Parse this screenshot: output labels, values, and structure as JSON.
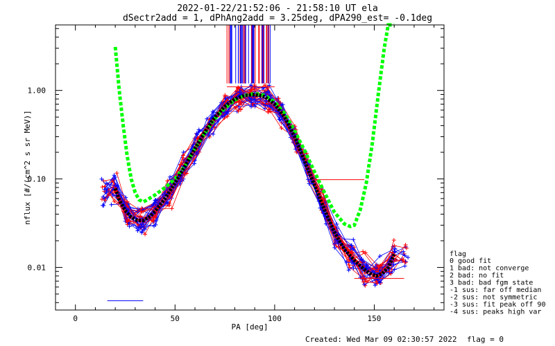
{
  "chart_data": {
    "type": "line",
    "title": "2022-01-22/21:52:06 - 21:58:10 UT ela",
    "subtitle": "dSectr2add = 1, dPhAng2add = 3.25deg, dPA290_est=  -0.1deg",
    "xlabel": "PA [deg]",
    "ylabel": "nflux [#/(cm^2 s sr MeV)]",
    "xlim": [
      -10,
      185
    ],
    "ylim": [
      0.0033,
      5.5
    ],
    "y_scale": "log",
    "x_ticks": [
      0,
      50,
      100,
      150
    ],
    "x_tick_labels": [
      "0",
      "50",
      "100",
      "150"
    ],
    "y_ticks": [
      0.01,
      0.1,
      1.0
    ],
    "y_tick_labels": [
      "0.01",
      "0.10",
      "1.00"
    ],
    "grid": false,
    "series": [
      {
        "name": "",
        "color": "#00ff00",
        "style": "thick-dashed",
        "x": [
          20,
          22,
          24,
          26,
          28,
          30,
          32,
          34,
          36,
          40,
          45,
          50,
          55,
          60,
          65,
          70,
          75,
          80,
          85,
          90,
          95,
          100,
          105,
          110,
          115,
          120,
          125,
          130,
          135,
          138,
          140,
          143,
          146,
          149,
          152,
          155,
          157,
          160
        ],
        "y": [
          3.1,
          1.0,
          0.4,
          0.18,
          0.1,
          0.07,
          0.058,
          0.055,
          0.058,
          0.066,
          0.08,
          0.1,
          0.14,
          0.22,
          0.33,
          0.48,
          0.63,
          0.78,
          0.88,
          0.92,
          0.88,
          0.74,
          0.55,
          0.35,
          0.21,
          0.12,
          0.07,
          0.042,
          0.031,
          0.029,
          0.03,
          0.045,
          0.09,
          0.25,
          0.9,
          3.0,
          5.5,
          5.5
        ]
      },
      {
        "name": "",
        "color": "#000000",
        "style": "thick-dotted",
        "x": [
          20,
          22,
          25,
          28,
          31,
          34,
          37,
          40,
          45,
          50,
          55,
          60,
          65,
          70,
          75,
          80,
          85,
          90,
          95,
          100,
          105,
          110,
          115,
          120,
          125,
          130,
          135,
          140,
          145,
          148,
          151,
          154,
          157,
          160
        ],
        "y": [
          0.078,
          0.058,
          0.044,
          0.037,
          0.034,
          0.034,
          0.037,
          0.043,
          0.06,
          0.09,
          0.14,
          0.22,
          0.34,
          0.5,
          0.66,
          0.8,
          0.88,
          0.9,
          0.85,
          0.7,
          0.5,
          0.3,
          0.16,
          0.085,
          0.045,
          0.025,
          0.016,
          0.012,
          0.0095,
          0.0085,
          0.008,
          0.0085,
          0.01,
          0.014
        ]
      }
    ],
    "legend": {
      "title": "flag",
      "placement": "right",
      "entries": [
        " 0 good fit",
        " 1 bad: not converge",
        " 2 bad: no fit",
        " 3 bad: bad fgm state",
        "-1 sus: far off median",
        "-2 sus: not symmetric",
        "-3 sus: fit peak off 90",
        "-4 sus: peaks high var"
      ]
    }
  },
  "footer": {
    "created": "Created: Wed Mar 09 02:30:57 2022",
    "flag": "flag = 0"
  }
}
